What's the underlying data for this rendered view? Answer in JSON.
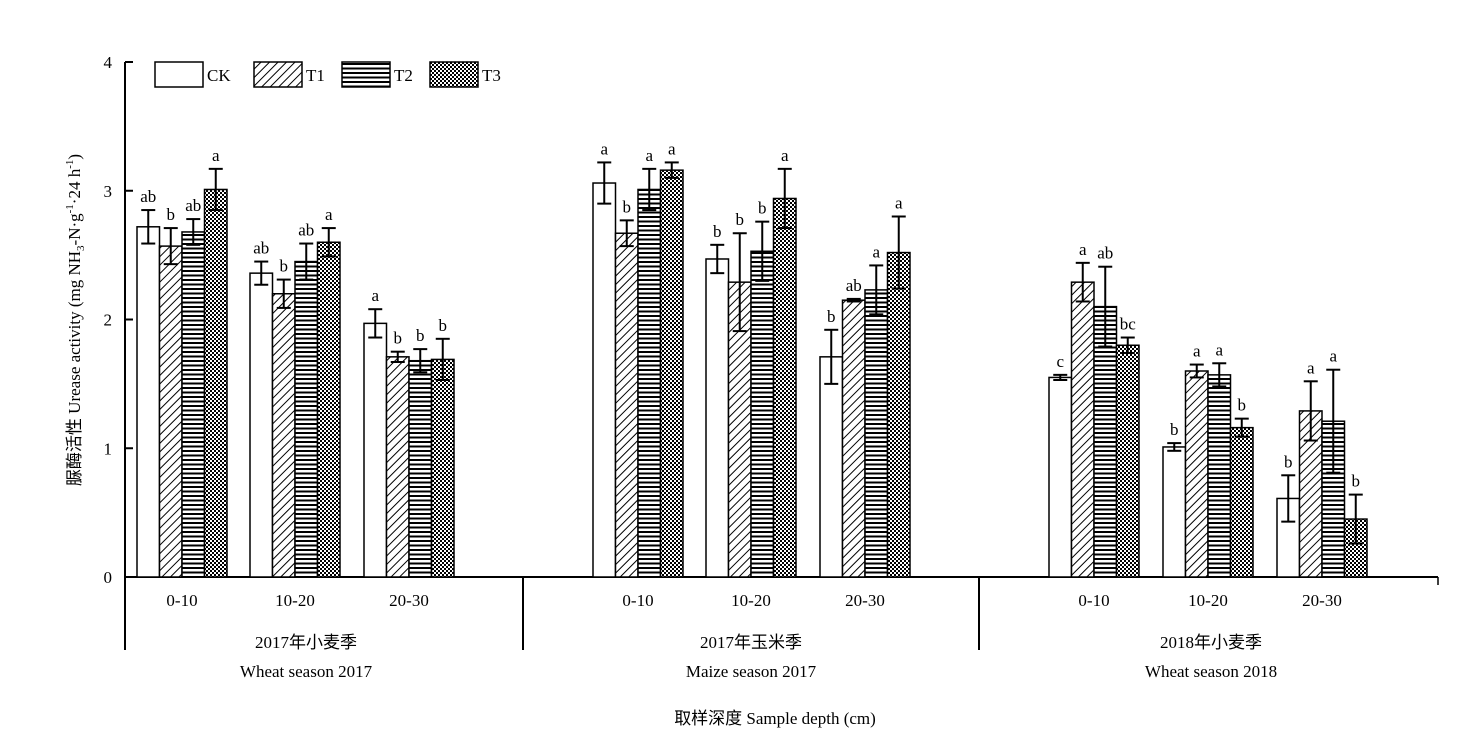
{
  "chart_data": {
    "type": "bar",
    "ylabel": "脲酶活性 Urease activity (mg NH3-N·g-1·24 h-1)",
    "ylabel_parts": {
      "main": "脲酶活性 Urease activity (mg NH",
      "sub3": "3",
      "mid": "-N·g",
      "sup1": "-1",
      "mid2": "·24 h",
      "sup2": "-1",
      "end": ")"
    },
    "xlabel": "取样深度 Sample depth (cm)",
    "ylim": [
      0,
      4
    ],
    "yticks": [
      "0",
      "1",
      "2",
      "3",
      "4"
    ],
    "legend": {
      "position": "top-left",
      "entries": [
        {
          "name": "CK",
          "pattern": "blank"
        },
        {
          "name": "T1",
          "pattern": "diagonal"
        },
        {
          "name": "T2",
          "pattern": "horizontal"
        },
        {
          "name": "T3",
          "pattern": "crosshatch"
        }
      ]
    },
    "series_names": [
      "CK",
      "T1",
      "T2",
      "T3"
    ],
    "groups": [
      {
        "label_cn": "2017年小麦季",
        "label_en": "Wheat season 2017",
        "depths": [
          {
            "label": "0-10",
            "values": [
              2.72,
              2.57,
              2.68,
              3.01
            ],
            "errors": [
              0.13,
              0.14,
              0.1,
              0.16
            ],
            "letters": [
              "ab",
              "b",
              "ab",
              "a"
            ]
          },
          {
            "label": "10-20",
            "values": [
              2.36,
              2.2,
              2.45,
              2.6
            ],
            "errors": [
              0.09,
              0.11,
              0.14,
              0.11
            ],
            "letters": [
              "ab",
              "b",
              "ab",
              "a"
            ]
          },
          {
            "label": "20-30",
            "values": [
              1.97,
              1.71,
              1.68,
              1.69
            ],
            "errors": [
              0.11,
              0.04,
              0.09,
              0.16
            ],
            "letters": [
              "a",
              "b",
              "b",
              "b"
            ]
          }
        ]
      },
      {
        "label_cn": "2017年玉米季",
        "label_en": "Maize season 2017",
        "depths": [
          {
            "label": "0-10",
            "values": [
              3.06,
              2.67,
              3.01,
              3.16
            ],
            "errors": [
              0.16,
              0.1,
              0.16,
              0.06
            ],
            "letters": [
              "a",
              "b",
              "a",
              "a"
            ]
          },
          {
            "label": "10-20",
            "values": [
              2.47,
              2.29,
              2.53,
              2.94
            ],
            "errors": [
              0.11,
              0.38,
              0.23,
              0.23
            ],
            "letters": [
              "b",
              "b",
              "b",
              "a"
            ]
          },
          {
            "label": "20-30",
            "values": [
              1.71,
              2.15,
              2.23,
              2.52
            ],
            "errors": [
              0.21,
              0.01,
              0.19,
              0.28
            ],
            "letters": [
              "b",
              "ab",
              "a",
              "a"
            ]
          }
        ]
      },
      {
        "label_cn": "2018年小麦季",
        "label_en": "Wheat season 2018",
        "depths": [
          {
            "label": "0-10",
            "values": [
              1.55,
              2.29,
              2.1,
              1.8
            ],
            "errors": [
              0.02,
              0.15,
              0.31,
              0.06
            ],
            "letters": [
              "c",
              "a",
              "ab",
              "bc"
            ]
          },
          {
            "label": "10-20",
            "values": [
              1.01,
              1.6,
              1.57,
              1.16
            ],
            "errors": [
              0.03,
              0.05,
              0.09,
              0.07
            ],
            "letters": [
              "b",
              "a",
              "a",
              "b"
            ]
          },
          {
            "label": "20-30",
            "values": [
              0.61,
              1.29,
              1.21,
              0.45
            ],
            "errors": [
              0.18,
              0.23,
              0.4,
              0.19
            ],
            "letters": [
              "b",
              "a",
              "a",
              "b"
            ]
          }
        ]
      }
    ]
  }
}
